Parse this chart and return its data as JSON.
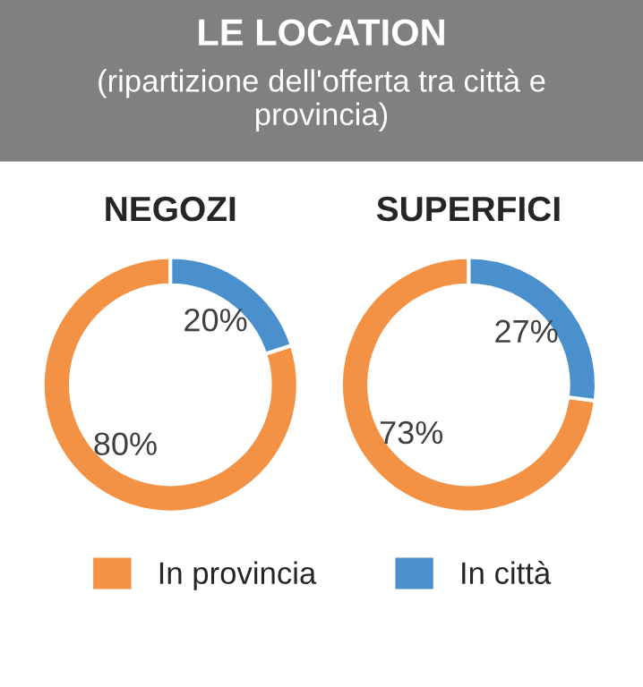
{
  "chart_data": [
    {
      "type": "other",
      "title": "LE LOCATION",
      "subtitle": "(ripartizione dell'offerta tra città e provincia)"
    },
    {
      "type": "donut",
      "title": "NEGOZI",
      "categories": [
        "In provincia",
        "In città"
      ],
      "values": [
        80,
        20
      ],
      "value_labels": [
        "80%",
        "20%"
      ],
      "colors": [
        "#f39244",
        "#4a90cd"
      ],
      "legend": "bottom"
    },
    {
      "type": "donut",
      "title": "SUPERFICI",
      "categories": [
        null,
        null
      ],
      "values": [
        73,
        27
      ],
      "value_labels": [
        "73%",
        "27%"
      ],
      "colors": [
        "#f39244",
        "#4a90cd"
      ]
    }
  ]
}
